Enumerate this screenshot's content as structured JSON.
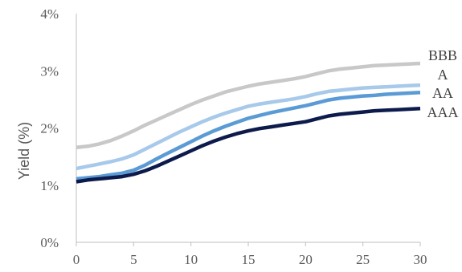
{
  "chart_data": {
    "type": "line",
    "title": "",
    "xlabel": "",
    "ylabel": "Yield (%)",
    "xlim": [
      0,
      30
    ],
    "ylim": [
      0,
      4
    ],
    "x_ticks": [
      "0",
      "5",
      "10",
      "15",
      "20",
      "25",
      "30"
    ],
    "y_ticks": [
      "0%",
      "1%",
      "2%",
      "3%",
      "4%"
    ],
    "grid": false,
    "x": [
      0,
      1,
      2,
      3,
      4,
      5,
      6,
      7,
      8,
      9,
      10,
      11,
      12,
      13,
      14,
      15,
      16,
      17,
      18,
      19,
      20,
      21,
      22,
      23,
      24,
      25,
      26,
      27,
      28,
      29,
      30
    ],
    "series": [
      {
        "name": "BBB",
        "color": "#c8c8c8",
        "values": [
          1.66,
          1.68,
          1.72,
          1.78,
          1.86,
          1.95,
          2.05,
          2.14,
          2.23,
          2.32,
          2.41,
          2.49,
          2.56,
          2.63,
          2.68,
          2.73,
          2.77,
          2.8,
          2.83,
          2.86,
          2.9,
          2.95,
          3.0,
          3.03,
          3.05,
          3.07,
          3.09,
          3.1,
          3.11,
          3.12,
          3.13
        ]
      },
      {
        "name": "A",
        "color": "#a7c9ea",
        "values": [
          1.29,
          1.33,
          1.37,
          1.41,
          1.46,
          1.53,
          1.63,
          1.73,
          1.83,
          1.93,
          2.02,
          2.11,
          2.19,
          2.26,
          2.32,
          2.38,
          2.42,
          2.45,
          2.48,
          2.51,
          2.55,
          2.6,
          2.64,
          2.66,
          2.68,
          2.7,
          2.71,
          2.72,
          2.73,
          2.74,
          2.75
        ]
      },
      {
        "name": "AA",
        "color": "#5b9bd5",
        "values": [
          1.11,
          1.13,
          1.15,
          1.18,
          1.21,
          1.26,
          1.35,
          1.46,
          1.56,
          1.66,
          1.76,
          1.86,
          1.95,
          2.03,
          2.1,
          2.17,
          2.22,
          2.27,
          2.31,
          2.35,
          2.39,
          2.44,
          2.49,
          2.52,
          2.54,
          2.56,
          2.57,
          2.59,
          2.6,
          2.61,
          2.62
        ]
      },
      {
        "name": "AAA",
        "color": "#0d1b4c",
        "values": [
          1.06,
          1.09,
          1.11,
          1.13,
          1.15,
          1.19,
          1.25,
          1.33,
          1.42,
          1.51,
          1.6,
          1.69,
          1.77,
          1.84,
          1.9,
          1.95,
          1.99,
          2.02,
          2.05,
          2.08,
          2.11,
          2.16,
          2.21,
          2.24,
          2.26,
          2.28,
          2.3,
          2.31,
          2.32,
          2.33,
          2.34
        ]
      }
    ]
  }
}
